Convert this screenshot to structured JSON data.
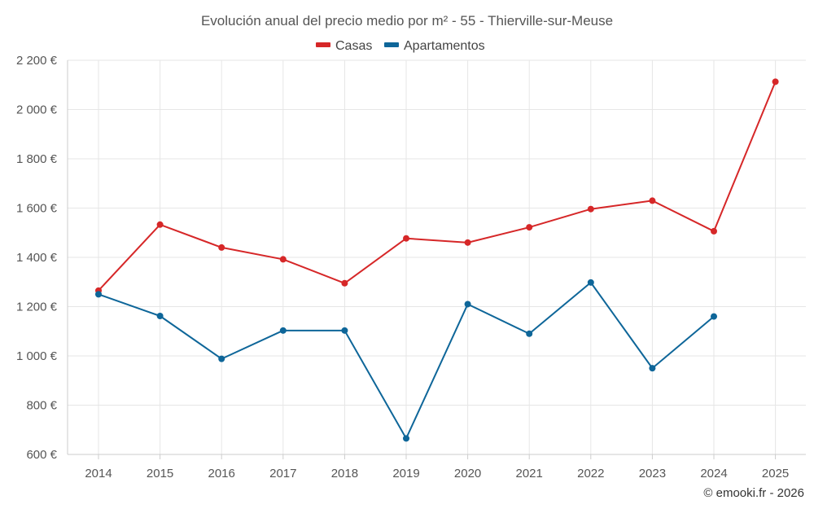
{
  "chart_data": {
    "type": "line",
    "title": "Evolución anual del precio medio por m² - 55 - Thierville-sur-Meuse",
    "categories": [
      "2014",
      "2015",
      "2016",
      "2017",
      "2018",
      "2019",
      "2020",
      "2021",
      "2022",
      "2023",
      "2024",
      "2025"
    ],
    "series": [
      {
        "name": "Casas",
        "color": "#d62728",
        "values": [
          1265,
          1533,
          1440,
          1392,
          1295,
          1477,
          1460,
          1522,
          1596,
          1630,
          1506,
          2113
        ]
      },
      {
        "name": "Apartamentos",
        "color": "#0e6699",
        "values": [
          1250,
          1162,
          988,
          1103,
          1103,
          665,
          1210,
          1090,
          1298,
          950,
          1160,
          null
        ]
      }
    ],
    "ylim": [
      600,
      2200
    ],
    "yticks": [
      600,
      800,
      1000,
      1200,
      1400,
      1600,
      1800,
      2000,
      2200
    ],
    "ytick_labels": [
      "600 €",
      "800 €",
      "1 000 €",
      "1 200 €",
      "1 400 €",
      "1 600 €",
      "1 800 €",
      "2 000 €",
      "2 200 €"
    ],
    "legend_position": "top-center",
    "grid": true,
    "xlabel": "",
    "ylabel": ""
  },
  "credit": "© emooki.fr - 2026"
}
